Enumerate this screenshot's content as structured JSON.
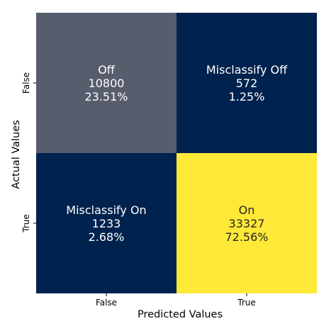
{
  "chart_data": {
    "type": "heatmap",
    "title": "",
    "xlabel": "Predicted Values",
    "ylabel": "Actual Values",
    "x_categories": [
      "False",
      "True"
    ],
    "y_categories": [
      "False",
      "True"
    ],
    "colormap": "cividis",
    "colorbar": false,
    "cells": [
      {
        "row": 0,
        "col": 0,
        "label": "Off",
        "count": 10800,
        "percent_text": "23.51%",
        "value": 0.2351,
        "color": "#575d6d",
        "text_color": "#ffffff"
      },
      {
        "row": 0,
        "col": 1,
        "label": "Misclassify Off",
        "count": 572,
        "percent_text": "1.25%",
        "value": 0.0125,
        "color": "#00224e",
        "text_color": "#ffffff"
      },
      {
        "row": 1,
        "col": 0,
        "label": "Misclassify On",
        "count": 1233,
        "percent_text": "2.68%",
        "value": 0.0268,
        "color": "#00224e",
        "text_color": "#ffffff"
      },
      {
        "row": 1,
        "col": 1,
        "label": "On",
        "count": 33327,
        "percent_text": "72.56%",
        "value": 0.7256,
        "color": "#fee838",
        "text_color": "#262626"
      }
    ]
  }
}
